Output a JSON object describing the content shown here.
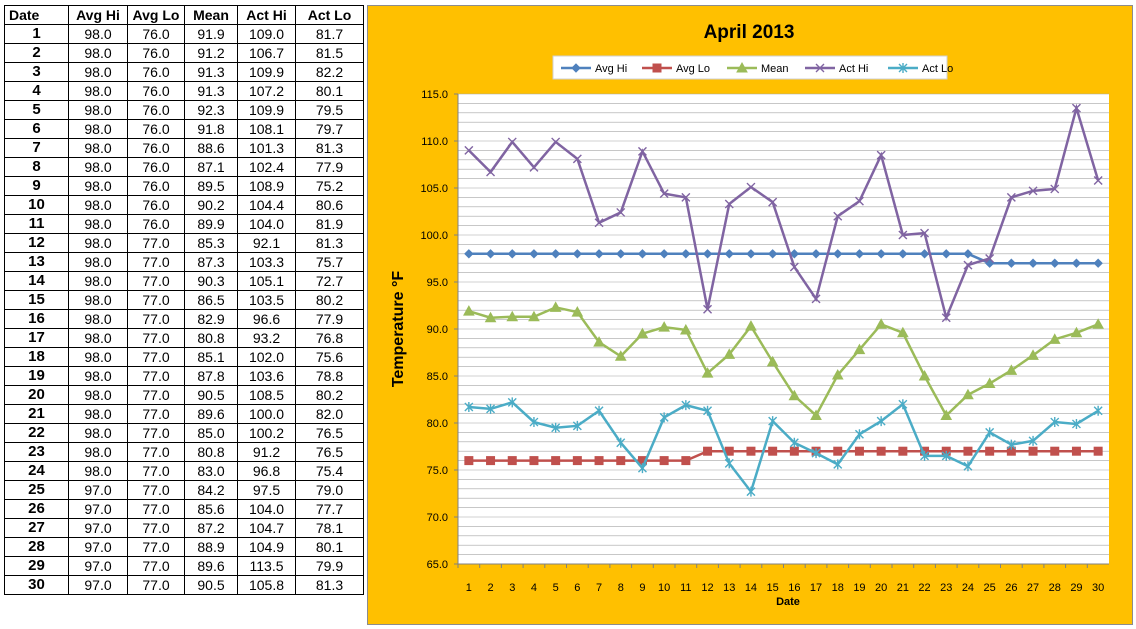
{
  "table": {
    "headers": [
      "Date",
      "Avg Hi",
      "Avg Lo",
      "Mean",
      "Act Hi",
      "Act Lo"
    ],
    "rows": [
      [
        "1",
        "98.0",
        "76.0",
        "91.9",
        "109.0",
        "81.7"
      ],
      [
        "2",
        "98.0",
        "76.0",
        "91.2",
        "106.7",
        "81.5"
      ],
      [
        "3",
        "98.0",
        "76.0",
        "91.3",
        "109.9",
        "82.2"
      ],
      [
        "4",
        "98.0",
        "76.0",
        "91.3",
        "107.2",
        "80.1"
      ],
      [
        "5",
        "98.0",
        "76.0",
        "92.3",
        "109.9",
        "79.5"
      ],
      [
        "6",
        "98.0",
        "76.0",
        "91.8",
        "108.1",
        "79.7"
      ],
      [
        "7",
        "98.0",
        "76.0",
        "88.6",
        "101.3",
        "81.3"
      ],
      [
        "8",
        "98.0",
        "76.0",
        "87.1",
        "102.4",
        "77.9"
      ],
      [
        "9",
        "98.0",
        "76.0",
        "89.5",
        "108.9",
        "75.2"
      ],
      [
        "10",
        "98.0",
        "76.0",
        "90.2",
        "104.4",
        "80.6"
      ],
      [
        "11",
        "98.0",
        "76.0",
        "89.9",
        "104.0",
        "81.9"
      ],
      [
        "12",
        "98.0",
        "77.0",
        "85.3",
        "92.1",
        "81.3"
      ],
      [
        "13",
        "98.0",
        "77.0",
        "87.3",
        "103.3",
        "75.7"
      ],
      [
        "14",
        "98.0",
        "77.0",
        "90.3",
        "105.1",
        "72.7"
      ],
      [
        "15",
        "98.0",
        "77.0",
        "86.5",
        "103.5",
        "80.2"
      ],
      [
        "16",
        "98.0",
        "77.0",
        "82.9",
        "96.6",
        "77.9"
      ],
      [
        "17",
        "98.0",
        "77.0",
        "80.8",
        "93.2",
        "76.8"
      ],
      [
        "18",
        "98.0",
        "77.0",
        "85.1",
        "102.0",
        "75.6"
      ],
      [
        "19",
        "98.0",
        "77.0",
        "87.8",
        "103.6",
        "78.8"
      ],
      [
        "20",
        "98.0",
        "77.0",
        "90.5",
        "108.5",
        "80.2"
      ],
      [
        "21",
        "98.0",
        "77.0",
        "89.6",
        "100.0",
        "82.0"
      ],
      [
        "22",
        "98.0",
        "77.0",
        "85.0",
        "100.2",
        "76.5"
      ],
      [
        "23",
        "98.0",
        "77.0",
        "80.8",
        "91.2",
        "76.5"
      ],
      [
        "24",
        "98.0",
        "77.0",
        "83.0",
        "96.8",
        "75.4"
      ],
      [
        "25",
        "97.0",
        "77.0",
        "84.2",
        "97.5",
        "79.0"
      ],
      [
        "26",
        "97.0",
        "77.0",
        "85.6",
        "104.0",
        "77.7"
      ],
      [
        "27",
        "97.0",
        "77.0",
        "87.2",
        "104.7",
        "78.1"
      ],
      [
        "28",
        "97.0",
        "77.0",
        "88.9",
        "104.9",
        "80.1"
      ],
      [
        "29",
        "97.0",
        "77.0",
        "89.6",
        "113.5",
        "79.9"
      ],
      [
        "30",
        "97.0",
        "77.0",
        "90.5",
        "105.8",
        "81.3"
      ]
    ]
  },
  "chart_data": {
    "type": "line",
    "title": "April 2013",
    "xlabel": "Date",
    "ylabel": "Temperature °F",
    "x": [
      1,
      2,
      3,
      4,
      5,
      6,
      7,
      8,
      9,
      10,
      11,
      12,
      13,
      14,
      15,
      16,
      17,
      18,
      19,
      20,
      21,
      22,
      23,
      24,
      25,
      26,
      27,
      28,
      29,
      30
    ],
    "ylim": [
      65,
      115
    ],
    "ytick_labels": [
      "65.0",
      "70.0",
      "75.0",
      "80.0",
      "85.0",
      "90.0",
      "95.0",
      "100.0",
      "105.0",
      "110.0",
      "115.0"
    ],
    "grid": "horizontal minor every 1.0",
    "legend_placement": "top",
    "background_color": "#FFC000",
    "series": [
      {
        "name": "Avg Hi",
        "color": "#4F81BD",
        "marker": "diamond",
        "values": [
          98,
          98,
          98,
          98,
          98,
          98,
          98,
          98,
          98,
          98,
          98,
          98,
          98,
          98,
          98,
          98,
          98,
          98,
          98,
          98,
          98,
          98,
          98,
          98,
          97,
          97,
          97,
          97,
          97,
          97
        ]
      },
      {
        "name": "Avg Lo",
        "color": "#C0504D",
        "marker": "square",
        "values": [
          76,
          76,
          76,
          76,
          76,
          76,
          76,
          76,
          76,
          76,
          76,
          77,
          77,
          77,
          77,
          77,
          77,
          77,
          77,
          77,
          77,
          77,
          77,
          77,
          77,
          77,
          77,
          77,
          77,
          77
        ]
      },
      {
        "name": "Mean",
        "color": "#9BBB59",
        "marker": "triangle",
        "values": [
          91.9,
          91.2,
          91.3,
          91.3,
          92.3,
          91.8,
          88.6,
          87.1,
          89.5,
          90.2,
          89.9,
          85.3,
          87.3,
          90.3,
          86.5,
          82.9,
          80.8,
          85.1,
          87.8,
          90.5,
          89.6,
          85.0,
          80.8,
          83.0,
          84.2,
          85.6,
          87.2,
          88.9,
          89.6,
          90.5
        ]
      },
      {
        "name": "Act Hi",
        "color": "#8064A2",
        "marker": "x",
        "values": [
          109.0,
          106.7,
          109.9,
          107.2,
          109.9,
          108.1,
          101.3,
          102.4,
          108.9,
          104.4,
          104.0,
          92.1,
          103.3,
          105.1,
          103.5,
          96.6,
          93.2,
          102.0,
          103.6,
          108.5,
          100.0,
          100.2,
          91.2,
          96.8,
          97.5,
          104.0,
          104.7,
          104.9,
          113.5,
          105.8
        ]
      },
      {
        "name": "Act Lo",
        "color": "#4BACC6",
        "marker": "star",
        "values": [
          81.7,
          81.5,
          82.2,
          80.1,
          79.5,
          79.7,
          81.3,
          77.9,
          75.2,
          80.6,
          81.9,
          81.3,
          75.7,
          72.7,
          80.2,
          77.9,
          76.8,
          75.6,
          78.8,
          80.2,
          82.0,
          76.5,
          76.5,
          75.4,
          79.0,
          77.7,
          78.1,
          80.1,
          79.9,
          81.3
        ]
      }
    ]
  }
}
